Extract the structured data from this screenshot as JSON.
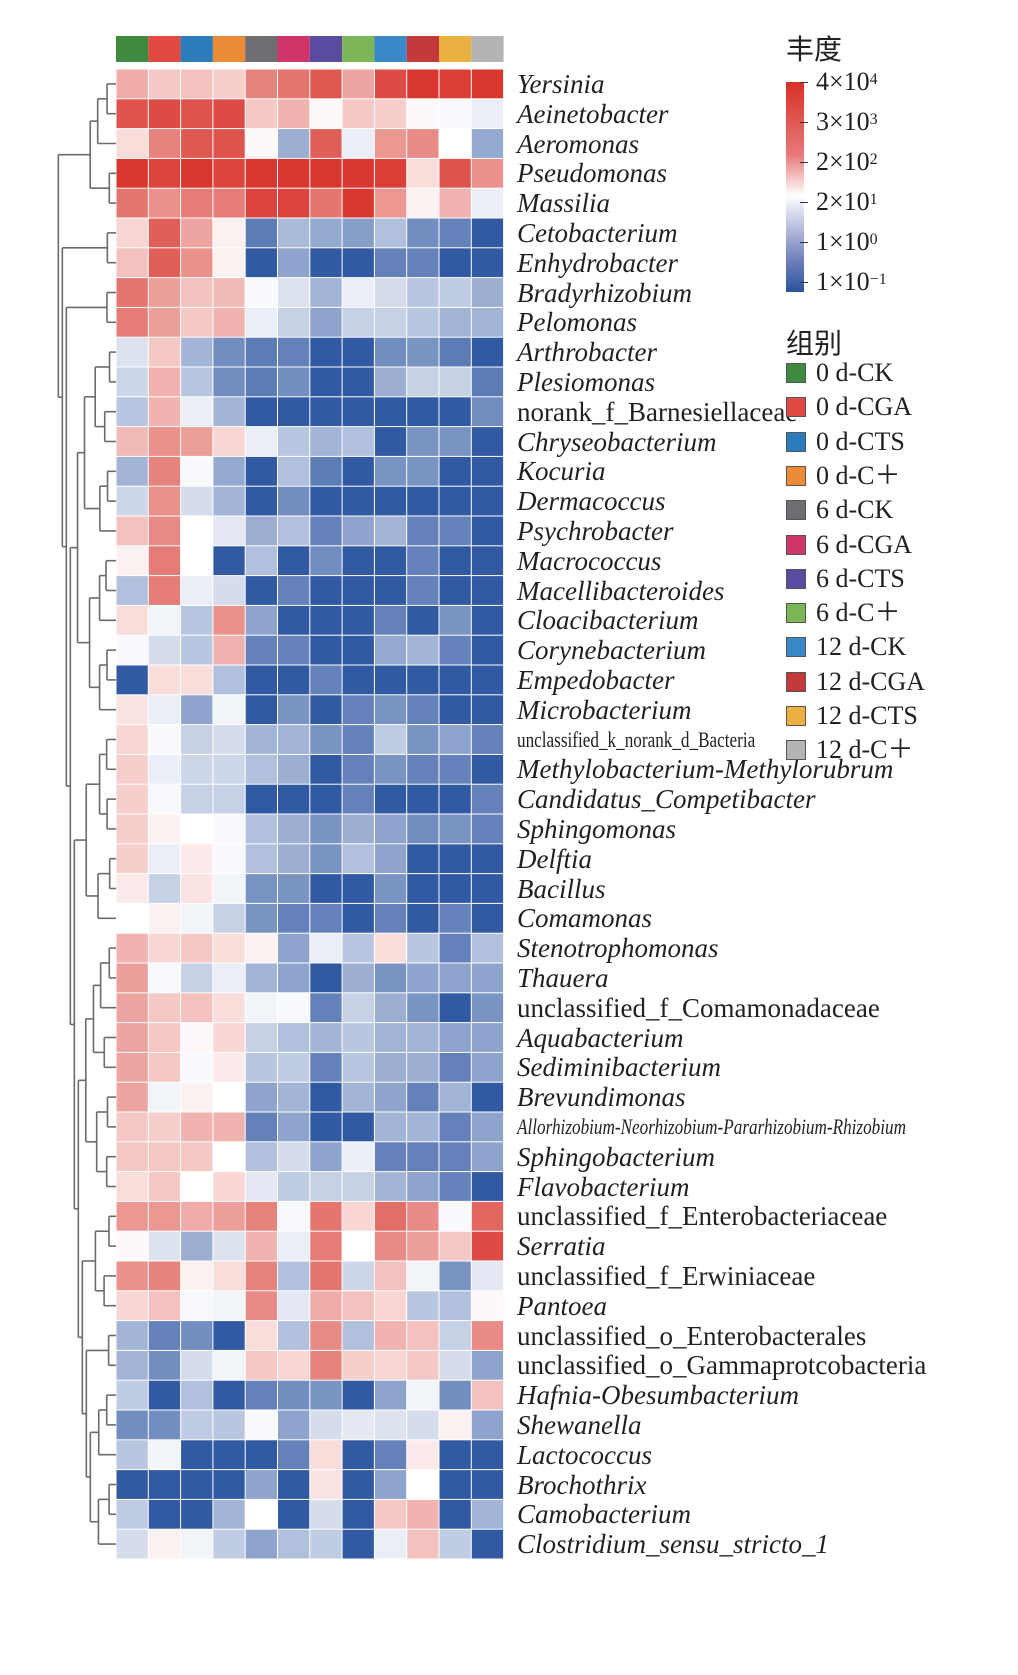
{
  "chart_data": {
    "type": "heatmap",
    "title": "",
    "colorbar_title": "丰度",
    "colorbar_ticks": [
      "4×10^4",
      "3×10^3",
      "2×10^2",
      "2×10^1",
      "1×10^0",
      "1×10^-1"
    ],
    "colorbar_scale": {
      "low_color": "#2b54a0",
      "mid_color": "#ffffff",
      "high_color": "#d73027"
    },
    "group_legend_title": "组别",
    "columns": [
      "0 d-CK",
      "0 d-CGA",
      "0 d-CTS",
      "0 d-C+",
      "6 d-CK",
      "6 d-CGA",
      "6 d-CTS",
      "6 d-C+",
      "12 d-CK",
      "12 d-CGA",
      "12 d-CTS",
      "12 d-C+"
    ],
    "column_colors": [
      "#3e8a3e",
      "#e04a43",
      "#2a7cbd",
      "#ec8b35",
      "#6f6f73",
      "#d0356a",
      "#5a4aa0",
      "#7db656",
      "#3a88c8",
      "#c23a3a",
      "#eab040",
      "#b4b4b4"
    ],
    "value_range": [
      -3,
      3
    ],
    "rows": [
      {
        "label": "Yersinia",
        "italic": true,
        "values": [
          1.2,
          0.8,
          0.9,
          0.7,
          1.8,
          2.0,
          2.4,
          1.3,
          2.6,
          2.9,
          2.8,
          2.9
        ]
      },
      {
        "label": "Aeinetobacter",
        "italic": true,
        "values": [
          2.5,
          2.6,
          2.5,
          2.6,
          0.8,
          1.1,
          0.1,
          0.8,
          0.7,
          0.1,
          -0.1,
          -0.3
        ]
      },
      {
        "label": "Aeromonas",
        "italic": true,
        "values": [
          0.5,
          1.8,
          2.4,
          2.5,
          0.1,
          -1.4,
          2.3,
          -0.3,
          1.5,
          1.7,
          0.0,
          -1.5
        ]
      },
      {
        "label": "Pseudomonas",
        "italic": true,
        "values": [
          2.9,
          2.7,
          2.9,
          2.7,
          2.9,
          2.9,
          2.9,
          2.9,
          2.8,
          0.5,
          2.5,
          1.6
        ]
      },
      {
        "label": "Massilia",
        "italic": true,
        "values": [
          2.0,
          1.6,
          1.9,
          1.9,
          2.7,
          2.7,
          2.0,
          2.9,
          1.5,
          0.2,
          1.1,
          -0.3
        ]
      },
      {
        "label": "Cetobacterium",
        "italic": true,
        "values": [
          0.6,
          2.3,
          1.3,
          0.2,
          -2.3,
          -1.2,
          -1.5,
          -1.7,
          -1.1,
          -2.0,
          -2.2,
          -2.9
        ]
      },
      {
        "label": "Enhydrobacter",
        "italic": true,
        "values": [
          0.9,
          2.3,
          1.6,
          0.2,
          -2.9,
          -1.6,
          -2.9,
          -2.9,
          -2.2,
          -2.2,
          -2.9,
          -2.9
        ]
      },
      {
        "label": "Bradyrhizobium",
        "italic": true,
        "values": [
          2.0,
          1.4,
          0.9,
          1.0,
          -0.1,
          -0.5,
          -1.3,
          -0.3,
          -0.6,
          -1.0,
          -0.9,
          -1.4
        ]
      },
      {
        "label": "Pelomonas",
        "italic": true,
        "values": [
          1.9,
          1.4,
          0.8,
          1.1,
          -0.3,
          -0.8,
          -1.6,
          -0.8,
          -0.8,
          -1.0,
          -1.3,
          -1.3
        ]
      },
      {
        "label": "Arthrobacter",
        "italic": true,
        "values": [
          -0.5,
          0.8,
          -1.3,
          -2.0,
          -2.3,
          -2.2,
          -2.9,
          -2.9,
          -2.0,
          -1.9,
          -2.3,
          -2.9
        ]
      },
      {
        "label": "Plesiomonas",
        "italic": true,
        "values": [
          -0.7,
          1.1,
          -1.0,
          -2.0,
          -2.3,
          -2.0,
          -2.9,
          -2.9,
          -1.4,
          -0.8,
          -0.8,
          -2.3
        ]
      },
      {
        "label": "norank_f_Barnesiellaceae",
        "italic": false,
        "values": [
          -1.0,
          1.1,
          -0.3,
          -1.3,
          -2.9,
          -2.9,
          -2.9,
          -2.9,
          -2.9,
          -2.9,
          -2.9,
          -2.0
        ]
      },
      {
        "label": "Chryseobacterium",
        "italic": true,
        "values": [
          1.0,
          1.6,
          1.4,
          0.6,
          -0.3,
          -1.0,
          -1.3,
          -1.1,
          -2.9,
          -1.9,
          -1.9,
          -2.9
        ]
      },
      {
        "label": "Kocuria",
        "italic": true,
        "values": [
          -1.3,
          1.8,
          -0.1,
          -1.5,
          -2.9,
          -1.1,
          -2.3,
          -2.9,
          -1.9,
          -1.9,
          -2.9,
          -2.9
        ]
      },
      {
        "label": "Dermacoccus",
        "italic": true,
        "values": [
          -0.7,
          1.6,
          -0.6,
          -1.3,
          -2.9,
          -2.0,
          -2.9,
          -2.9,
          -2.9,
          -2.9,
          -2.9,
          -2.9
        ]
      },
      {
        "label": "Psychrobacter",
        "italic": true,
        "values": [
          0.9,
          1.7,
          0.0,
          -0.4,
          -1.4,
          -1.1,
          -2.2,
          -1.6,
          -1.3,
          -2.2,
          -2.2,
          -2.9
        ]
      },
      {
        "label": "Macrococcus",
        "italic": true,
        "values": [
          0.2,
          1.9,
          0.0,
          -2.9,
          -1.1,
          -2.9,
          -2.0,
          -2.9,
          -2.9,
          -2.2,
          -2.9,
          -2.9
        ]
      },
      {
        "label": "Macellibacteroides",
        "italic": true,
        "values": [
          -1.1,
          1.9,
          -0.3,
          -0.6,
          -2.9,
          -2.2,
          -2.9,
          -2.9,
          -2.9,
          -2.2,
          -2.9,
          -2.9
        ]
      },
      {
        "label": "Cloacibacterium",
        "italic": true,
        "values": [
          0.5,
          -0.2,
          -1.0,
          1.6,
          -1.6,
          -2.9,
          -2.9,
          -2.9,
          -2.2,
          -2.9,
          -1.9,
          -2.9
        ]
      },
      {
        "label": "Corynebacterium",
        "italic": true,
        "values": [
          -0.1,
          -0.6,
          -1.0,
          1.1,
          -2.2,
          -2.2,
          -2.9,
          -2.9,
          -1.5,
          -1.3,
          -2.2,
          -2.9
        ]
      },
      {
        "label": "Empedobacter",
        "italic": true,
        "values": [
          -2.9,
          0.5,
          0.5,
          -1.1,
          -2.9,
          -2.9,
          -2.2,
          -2.9,
          -2.9,
          -2.9,
          -2.9,
          -2.9
        ]
      },
      {
        "label": "Microbacterium",
        "italic": true,
        "values": [
          0.4,
          -0.3,
          -1.6,
          -0.2,
          -2.9,
          -1.9,
          -2.9,
          -2.2,
          -1.9,
          -2.2,
          -2.9,
          -2.9
        ]
      },
      {
        "label": "unclassified_k_norank_d_Bacteria",
        "italic": false,
        "condensed": true,
        "values": [
          0.6,
          -0.1,
          -0.8,
          -0.6,
          -1.3,
          -1.3,
          -1.9,
          -2.2,
          -0.9,
          -1.9,
          -1.6,
          -2.2
        ]
      },
      {
        "label": "Methylobacterium-Methylorubrum",
        "italic": true,
        "values": [
          0.7,
          -0.3,
          -0.7,
          -0.7,
          -1.1,
          -1.4,
          -2.9,
          -2.2,
          -1.9,
          -2.2,
          -2.2,
          -2.9
        ]
      },
      {
        "label": "Candidatus_Competibacter",
        "italic": true,
        "values": [
          0.7,
          -0.1,
          -0.8,
          -0.8,
          -2.9,
          -2.9,
          -2.9,
          -2.2,
          -2.9,
          -2.9,
          -2.9,
          -2.2
        ]
      },
      {
        "label": "Sphingomonas",
        "italic": true,
        "values": [
          0.7,
          0.2,
          0.0,
          -0.1,
          -1.1,
          -1.4,
          -1.9,
          -1.4,
          -1.6,
          -2.0,
          -1.9,
          -2.2
        ]
      },
      {
        "label": "Delftia",
        "italic": true,
        "values": [
          0.7,
          -0.3,
          0.3,
          -0.1,
          -1.1,
          -1.4,
          -1.9,
          -1.1,
          -1.6,
          -2.9,
          -2.9,
          -2.9
        ]
      },
      {
        "label": "Bacillus",
        "italic": true,
        "values": [
          0.3,
          -0.8,
          0.4,
          -0.2,
          -1.9,
          -1.9,
          -2.9,
          -2.9,
          -1.9,
          -2.9,
          -2.9,
          -2.9
        ]
      },
      {
        "label": "Comamonas",
        "italic": true,
        "values": [
          0.0,
          0.2,
          -0.2,
          -0.8,
          -1.9,
          -2.2,
          -2.2,
          -2.9,
          -2.2,
          -2.9,
          -2.2,
          -2.9
        ]
      },
      {
        "label": "Stenotrophomonas",
        "italic": true,
        "values": [
          1.1,
          0.6,
          0.8,
          0.5,
          0.2,
          -1.6,
          -0.3,
          -1.0,
          0.5,
          -1.0,
          -2.2,
          -1.1
        ]
      },
      {
        "label": "Thauera",
        "italic": true,
        "values": [
          1.4,
          -0.1,
          -0.8,
          -0.3,
          -1.3,
          -1.6,
          -2.9,
          -1.4,
          -1.9,
          -1.6,
          -1.6,
          -1.6
        ]
      },
      {
        "label": "unclassified_f_Comamonadaceae",
        "italic": false,
        "values": [
          1.3,
          0.8,
          0.9,
          0.5,
          -0.2,
          -0.1,
          -2.2,
          -0.8,
          -1.4,
          -1.9,
          -2.9,
          -1.9
        ]
      },
      {
        "label": "Aquabacterium",
        "italic": true,
        "values": [
          1.3,
          0.8,
          0.1,
          0.6,
          -0.8,
          -1.1,
          -1.3,
          -1.0,
          -1.3,
          -1.3,
          -1.6,
          -1.6
        ]
      },
      {
        "label": "Sediminibacterium",
        "italic": true,
        "values": [
          1.3,
          0.8,
          -0.1,
          0.3,
          -1.0,
          -0.9,
          -2.2,
          -1.0,
          -1.4,
          -1.4,
          -2.2,
          -1.6
        ]
      },
      {
        "label": "Brevundimonas",
        "italic": true,
        "values": [
          1.3,
          -0.2,
          0.2,
          0.0,
          -1.6,
          -1.3,
          -2.9,
          -1.3,
          -1.6,
          -2.2,
          -1.3,
          -2.9
        ]
      },
      {
        "label": "Allorhizobium-Neorhizobium-Pararhizobium-Rhizobium",
        "italic": true,
        "condensed": true,
        "values": [
          0.8,
          0.7,
          1.1,
          1.1,
          -2.2,
          -1.6,
          -2.9,
          -2.9,
          -1.3,
          -1.3,
          -2.2,
          -1.6
        ]
      },
      {
        "label": "Sphingobacterium",
        "italic": true,
        "values": [
          0.8,
          0.8,
          0.8,
          0.0,
          -1.1,
          -0.6,
          -1.6,
          -0.3,
          -2.2,
          -2.2,
          -2.2,
          -1.6
        ]
      },
      {
        "label": "Flavobacterium",
        "italic": true,
        "values": [
          0.5,
          0.8,
          0.0,
          0.6,
          -0.4,
          -0.9,
          -0.8,
          -0.8,
          -1.3,
          -1.6,
          -2.2,
          -2.9
        ]
      },
      {
        "label": "unclassified_f_Enterobacteriaceae",
        "italic": false,
        "values": [
          1.5,
          1.5,
          1.2,
          1.4,
          1.8,
          -0.1,
          2.0,
          0.6,
          2.1,
          1.7,
          -0.1,
          2.2
        ]
      },
      {
        "label": "Serratia",
        "italic": true,
        "values": [
          0.1,
          -0.5,
          -1.4,
          -0.5,
          1.1,
          -0.3,
          1.9,
          0.0,
          1.7,
          1.4,
          0.8,
          2.6
        ]
      },
      {
        "label": "unclassified_f_Erwiniaceae",
        "italic": false,
        "values": [
          1.6,
          1.8,
          0.2,
          0.5,
          1.8,
          -1.1,
          2.0,
          -0.7,
          0.9,
          -0.2,
          -1.9,
          -0.4
        ]
      },
      {
        "label": "Pantoea",
        "italic": true,
        "values": [
          0.6,
          0.9,
          -0.1,
          -0.2,
          1.7,
          -0.4,
          1.2,
          0.9,
          0.6,
          -1.0,
          -1.1,
          0.1
        ]
      },
      {
        "label": "unclassified_o_Enterobacterales",
        "italic": false,
        "values": [
          -1.3,
          -2.2,
          -2.0,
          -2.9,
          0.5,
          -1.1,
          1.7,
          -1.1,
          1.1,
          0.9,
          -0.8,
          1.7
        ]
      },
      {
        "label": "unclassified_o_Gammaprotcobacteria",
        "italic": false,
        "values": [
          -1.3,
          -2.0,
          -0.6,
          -0.2,
          0.8,
          0.6,
          1.8,
          0.7,
          0.6,
          0.8,
          -0.6,
          -1.6
        ]
      },
      {
        "label": "Hafnia-Obesumbacterium",
        "italic": true,
        "values": [
          -0.9,
          -2.9,
          -1.1,
          -2.9,
          -2.2,
          -2.0,
          -1.9,
          -2.9,
          -1.6,
          -0.2,
          -2.0,
          0.9
        ]
      },
      {
        "label": "Shewanella",
        "italic": true,
        "values": [
          -2.0,
          -2.0,
          -0.9,
          -1.0,
          -0.1,
          -1.6,
          -0.6,
          -0.4,
          -0.5,
          -0.6,
          0.2,
          -1.6
        ]
      },
      {
        "label": "Lactococcus",
        "italic": true,
        "values": [
          -1.0,
          -0.2,
          -2.9,
          -2.9,
          -2.9,
          -2.2,
          0.5,
          -2.9,
          -2.2,
          0.3,
          -2.9,
          -2.9
        ]
      },
      {
        "label": "Brochothrix",
        "italic": true,
        "values": [
          -2.9,
          -2.9,
          -2.9,
          -2.9,
          -1.6,
          -2.9,
          0.4,
          -2.9,
          -1.6,
          0.0,
          -2.9,
          -2.9
        ]
      },
      {
        "label": "Camobacterium",
        "italic": true,
        "values": [
          -0.9,
          -2.9,
          -2.9,
          -1.3,
          0.0,
          -2.9,
          -0.6,
          -2.9,
          0.8,
          1.1,
          -2.9,
          -1.3
        ]
      },
      {
        "label": "Clostridium_sensu_stricto_1",
        "italic": true,
        "values": [
          -0.6,
          0.2,
          -0.2,
          -0.9,
          -1.6,
          -1.1,
          -0.9,
          -2.9,
          -0.3,
          0.9,
          -0.9,
          -2.9
        ]
      }
    ]
  }
}
